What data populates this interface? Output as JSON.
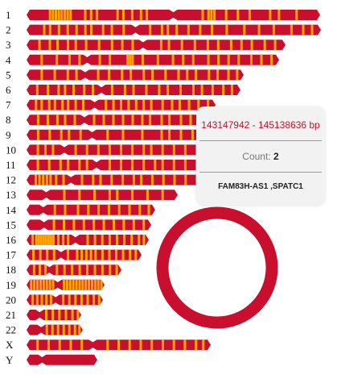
{
  "colors": {
    "chromosome": "#c8102e",
    "band": "#ffa500",
    "text": "#111111"
  },
  "chromosomes": [
    {
      "label": "1",
      "cen": 0.5,
      "bands": [
        0.08,
        0.09,
        0.1,
        0.11,
        0.12,
        0.13,
        0.14,
        0.15,
        0.2,
        0.22,
        0.24,
        0.31,
        0.33,
        0.36,
        0.39,
        0.41,
        0.6,
        0.62,
        0.63,
        0.64,
        0.68,
        0.72,
        0.76,
        0.83,
        0.86,
        0.92
      ]
    },
    {
      "label": "2",
      "cen": 0.37,
      "bands": [
        0.06,
        0.08,
        0.11,
        0.14,
        0.17,
        0.2,
        0.22,
        0.26,
        0.29,
        0.33,
        0.42,
        0.46,
        0.48,
        0.51,
        0.55,
        0.59,
        0.63,
        0.68,
        0.74,
        0.79,
        0.84,
        0.9,
        0.94,
        0.97
      ]
    },
    {
      "label": "3",
      "cen": 0.45,
      "bands": [
        0.05,
        0.09,
        0.12,
        0.16,
        0.19,
        0.23,
        0.28,
        0.33,
        0.37,
        0.41,
        0.52,
        0.55,
        0.6,
        0.65,
        0.7,
        0.74,
        0.79,
        0.83,
        0.87,
        0.92,
        0.96
      ]
    },
    {
      "label": "4",
      "cen": 0.24,
      "bands": [
        0.06,
        0.12,
        0.17,
        0.21,
        0.29,
        0.33,
        0.4,
        0.41,
        0.42,
        0.46,
        0.52,
        0.58,
        0.62,
        0.66,
        0.72,
        0.76,
        0.8,
        0.84,
        0.89,
        0.93,
        0.97
      ]
    },
    {
      "label": "5",
      "cen": 0.27,
      "bands": [
        0.07,
        0.13,
        0.19,
        0.23,
        0.33,
        0.38,
        0.44,
        0.48,
        0.54,
        0.58,
        0.64,
        0.7,
        0.74,
        0.78,
        0.84,
        0.88,
        0.93,
        0.97
      ]
    },
    {
      "label": "6",
      "cen": 0.35,
      "bands": [
        0.05,
        0.1,
        0.15,
        0.18,
        0.22,
        0.27,
        0.31,
        0.4,
        0.46,
        0.5,
        0.56,
        0.62,
        0.66,
        0.72,
        0.78,
        0.82,
        0.87,
        0.92,
        0.96
      ]
    },
    {
      "label": "7",
      "cen": 0.36,
      "bands": [
        0.05,
        0.08,
        0.12,
        0.15,
        0.19,
        0.22,
        0.26,
        0.3,
        0.42,
        0.46,
        0.5,
        0.54,
        0.58,
        0.62,
        0.66,
        0.72,
        0.77,
        0.81,
        0.86,
        0.91,
        0.96
      ]
    },
    {
      "label": "8",
      "cen": 0.3,
      "bands": [
        0.06,
        0.11,
        0.16,
        0.2,
        0.25,
        0.35,
        0.4,
        0.45,
        0.5,
        0.55,
        0.6,
        0.64,
        0.7,
        0.74,
        0.8,
        0.85,
        0.9,
        0.95
      ]
    },
    {
      "label": "9",
      "cen": 0.34,
      "bands": [
        0.06,
        0.12,
        0.18,
        0.22,
        0.28,
        0.42,
        0.5,
        0.6,
        0.7,
        0.74,
        0.8,
        0.86,
        0.92,
        0.96
      ]
    },
    {
      "label": "10",
      "cen": 0.2,
      "bands": [
        0.06,
        0.1,
        0.14,
        0.26,
        0.32,
        0.38,
        0.44,
        0.5,
        0.56,
        0.62,
        0.66,
        0.72,
        0.78,
        0.84,
        0.9,
        0.95
      ]
    },
    {
      "label": "11",
      "cen": 0.37,
      "bands": [
        0.06,
        0.12,
        0.18,
        0.22,
        0.28,
        0.32,
        0.44,
        0.5,
        0.56,
        0.62,
        0.68,
        0.72,
        0.78,
        0.84,
        0.9,
        0.95
      ]
    },
    {
      "label": "12",
      "cen": 0.24,
      "bands": [
        0.05,
        0.07,
        0.09,
        0.11,
        0.13,
        0.16,
        0.2,
        0.3,
        0.36,
        0.4,
        0.46,
        0.52,
        0.58,
        0.62,
        0.68,
        0.74,
        0.8,
        0.86,
        0.92,
        0.96
      ]
    },
    {
      "label": "13",
      "cen": 0.13,
      "bands": [
        0.25,
        0.35,
        0.45,
        0.55,
        0.6,
        0.7,
        0.8,
        0.9
      ]
    },
    {
      "label": "14",
      "cen": 0.13,
      "bands": [
        0.22,
        0.3,
        0.4,
        0.48,
        0.56,
        0.64,
        0.72,
        0.8,
        0.88,
        0.95
      ]
    },
    {
      "label": "15",
      "cen": 0.14,
      "bands": [
        0.22,
        0.3,
        0.38,
        0.46,
        0.54,
        0.62,
        0.7,
        0.78,
        0.86,
        0.94
      ]
    },
    {
      "label": "16",
      "cen": 0.4,
      "bands": [
        0.05,
        0.08,
        0.1,
        0.12,
        0.14,
        0.16,
        0.18,
        0.2,
        0.22,
        0.26,
        0.3,
        0.34,
        0.5,
        0.56,
        0.62,
        0.68,
        0.74,
        0.8,
        0.86,
        0.92,
        0.96
      ]
    },
    {
      "label": "17",
      "cen": 0.3,
      "bands": [
        0.06,
        0.12,
        0.18,
        0.24,
        0.36,
        0.44,
        0.48,
        0.52,
        0.56,
        0.6,
        0.66,
        0.72,
        0.78,
        0.84,
        0.9,
        0.95
      ]
    },
    {
      "label": "18",
      "cen": 0.24,
      "bands": [
        0.08,
        0.14,
        0.2,
        0.32,
        0.4,
        0.48,
        0.56,
        0.64,
        0.72,
        0.8,
        0.88,
        0.95
      ]
    },
    {
      "label": "19",
      "cen": 0.4,
      "bands": [
        0.06,
        0.1,
        0.14,
        0.18,
        0.22,
        0.26,
        0.3,
        0.34,
        0.48,
        0.52,
        0.56,
        0.6,
        0.64,
        0.68,
        0.72,
        0.76,
        0.8,
        0.84,
        0.88,
        0.92,
        0.96
      ]
    },
    {
      "label": "20",
      "cen": 0.38,
      "bands": [
        0.08,
        0.14,
        0.2,
        0.26,
        0.32,
        0.48,
        0.56,
        0.64,
        0.72,
        0.8,
        0.88,
        0.95
      ]
    },
    {
      "label": "21",
      "cen": 0.24,
      "bands": [
        0.36,
        0.48,
        0.6,
        0.72,
        0.84,
        0.94
      ]
    },
    {
      "label": "22",
      "cen": 0.26,
      "bands": [
        0.36,
        0.46,
        0.56,
        0.66,
        0.76,
        0.86,
        0.94
      ]
    },
    {
      "label": "X",
      "cen": 0.36,
      "bands": [
        0.06,
        0.12,
        0.18,
        0.24,
        0.3,
        0.44,
        0.5,
        0.56,
        0.62,
        0.68,
        0.74,
        0.8,
        0.86,
        0.92,
        0.96
      ]
    },
    {
      "label": "Y",
      "cen": 0.22,
      "bands": []
    }
  ],
  "tooltip": {
    "range": "143147942 - 145138636 bp",
    "count_label": "Count:",
    "count_value": "2",
    "genes": "FAM83H-AS1 ,SPATC1"
  }
}
